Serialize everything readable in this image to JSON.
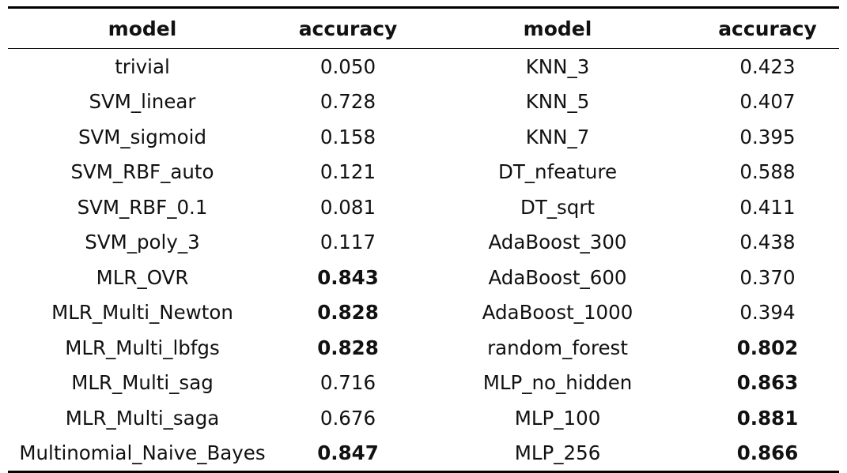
{
  "headers": [
    "model",
    "accuracy",
    "model",
    "accuracy"
  ],
  "rows": [
    {
      "m1": "trivial",
      "a1": "0.050",
      "b1": false,
      "m2": "KNN_3",
      "a2": "0.423",
      "b2": false
    },
    {
      "m1": "SVM_linear",
      "a1": "0.728",
      "b1": false,
      "m2": "KNN_5",
      "a2": "0.407",
      "b2": false
    },
    {
      "m1": "SVM_sigmoid",
      "a1": "0.158",
      "b1": false,
      "m2": "KNN_7",
      "a2": "0.395",
      "b2": false
    },
    {
      "m1": "SVM_RBF_auto",
      "a1": "0.121",
      "b1": false,
      "m2": "DT_nfeature",
      "a2": "0.588",
      "b2": false
    },
    {
      "m1": "SVM_RBF_0.1",
      "a1": "0.081",
      "b1": false,
      "m2": "DT_sqrt",
      "a2": "0.411",
      "b2": false
    },
    {
      "m1": "SVM_poly_3",
      "a1": "0.117",
      "b1": false,
      "m2": "AdaBoost_300",
      "a2": "0.438",
      "b2": false
    },
    {
      "m1": "MLR_OVR",
      "a1": "0.843",
      "b1": true,
      "m2": "AdaBoost_600",
      "a2": "0.370",
      "b2": false
    },
    {
      "m1": "MLR_Multi_Newton",
      "a1": "0.828",
      "b1": true,
      "m2": "AdaBoost_1000",
      "a2": "0.394",
      "b2": false
    },
    {
      "m1": "MLR_Multi_lbfgs",
      "a1": "0.828",
      "b1": true,
      "m2": "random_forest",
      "a2": "0.802",
      "b2": true
    },
    {
      "m1": "MLR_Multi_sag",
      "a1": "0.716",
      "b1": false,
      "m2": "MLP_no_hidden",
      "a2": "0.863",
      "b2": true
    },
    {
      "m1": "MLR_Multi_saga",
      "a1": "0.676",
      "b1": false,
      "m2": "MLP_100",
      "a2": "0.881",
      "b2": true
    },
    {
      "m1": "Multinomial_Naive_Bayes",
      "a1": "0.847",
      "b1": true,
      "m2": "MLP_256",
      "a2": "0.866",
      "b2": true
    }
  ]
}
